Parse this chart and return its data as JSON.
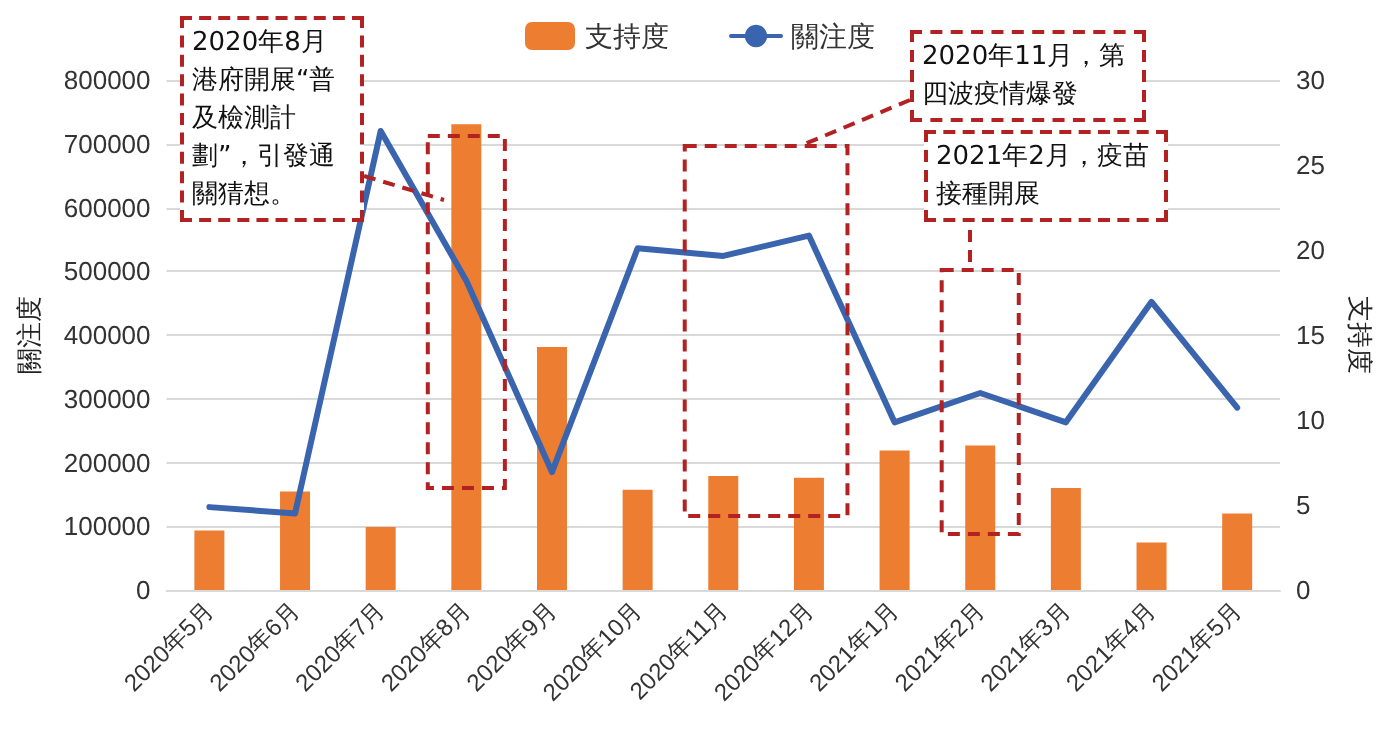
{
  "chart_data": {
    "type": "bar",
    "categories": [
      "2020年5月",
      "2020年6月",
      "2020年7月",
      "2020年8月",
      "2020年9月",
      "2020年10月",
      "2020年11月",
      "2020年12月",
      "2021年1月",
      "2021年2月",
      "2021年3月",
      "2021年4月",
      "2021年5月"
    ],
    "series": [
      {
        "name": "支持度",
        "axis": "y2",
        "color": "#ed7d31",
        "values": [
          3.5,
          5.8,
          3.7,
          27.4,
          14.3,
          5.9,
          6.7,
          6.6,
          8.2,
          8.5,
          6.0,
          2.8,
          4.5
        ]
      },
      {
        "name": "關注度",
        "type": "line",
        "color": "#3a64ad",
        "values": [
          130000,
          120000,
          720000,
          485000,
          185000,
          536000,
          524000,
          556000,
          263000,
          309000,
          263000,
          452000,
          286000
        ]
      }
    ],
    "ylabel": "關注度",
    "y2label": "支持度",
    "ylim": [
      0,
      800000
    ],
    "yticks": [
      0,
      100000,
      200000,
      300000,
      400000,
      500000,
      600000,
      700000,
      800000
    ],
    "y2lim": [
      0,
      30
    ],
    "y2ticks": [
      0,
      5,
      10,
      15,
      20,
      25,
      30
    ],
    "annotations": [
      "2020年8月港府開展“普及檢測計劃”，引發通關猜想。",
      "2020年11月，第四波疫情爆發",
      "2021年2月，疫苗接種開展"
    ],
    "grid": "y",
    "legend": "top",
    "marker": "none",
    "line_style": "solid"
  }
}
